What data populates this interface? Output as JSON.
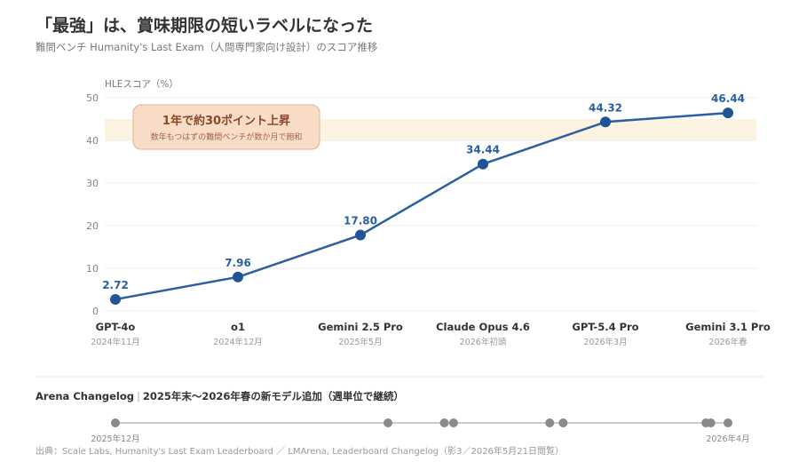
{
  "header": {
    "title": "「最強」は、賞味期限の短いラベルになった",
    "subtitle": "難問ベンチ Humanity's Last Exam（人間専門家向け設計）のスコア推移"
  },
  "chart_data": {
    "type": "line",
    "ylabel": "HLEスコア（%）",
    "ylim": [
      0,
      50
    ],
    "yticks": [
      0,
      10,
      20,
      30,
      40,
      50
    ],
    "grid": true,
    "categories": [
      "GPT-4o",
      "o1",
      "Gemini 2.5 Pro",
      "Claude Opus 4.6",
      "GPT-5.4 Pro",
      "Gemini 3.1 Pro"
    ],
    "dates": [
      "2024年11月",
      "2024年12月",
      "2025年5月",
      "2026年初頭",
      "2026年3月",
      "2026年春"
    ],
    "series": [
      {
        "values": [
          2.72,
          7.96,
          17.8,
          34.44,
          44.32,
          46.44
        ]
      }
    ],
    "value_labels": [
      "2.72",
      "7.96",
      "17.80",
      "34.44",
      "44.32",
      "46.44"
    ],
    "annotation": {
      "title": "1年で約30ポイント上昇",
      "body": "数年もつはずの難問ベンチが数か月で飽和"
    },
    "colors": {
      "line": "#2b5fa0",
      "point": "#1f5597",
      "label": "#2b5fa0",
      "grid": "#eeeeee",
      "band": "#fbf2e0",
      "callout_fill": "#f8dcc8",
      "callout_border": "#e2b192",
      "callout_title": "#8a4a28",
      "callout_body": "#a0674a"
    }
  },
  "timeline": {
    "title_left": "Arena Changelog",
    "title_right": "2025年末〜2026年春の新モデル追加（週単位で継続）",
    "start_label": "2025年12月",
    "end_label": "2026年4月",
    "events": [
      0.0,
      0.445,
      0.537,
      0.552,
      0.709,
      0.731,
      0.964,
      0.972,
      1.0
    ],
    "colors": {
      "line": "#cccccc",
      "dot": "#8a8a8a"
    }
  },
  "source": "出典：Scale Labs, Humanity's Last Exam Leaderboard ／ LMArena, Leaderboard Changelog（影3／2026年5月21日閲覧）"
}
